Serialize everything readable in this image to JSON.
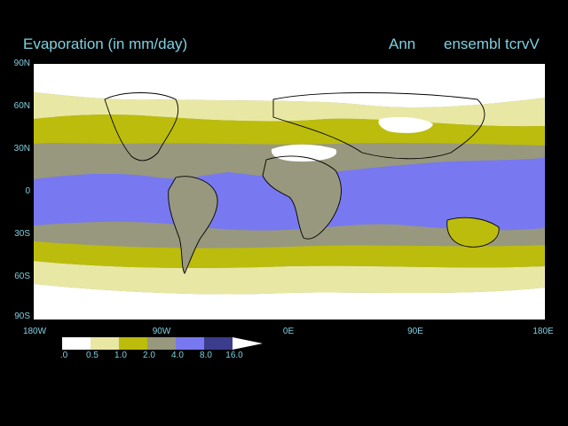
{
  "title": "Evaporation (in mm/day)",
  "season": "Ann",
  "run": "ensembl tcrvV",
  "lat_labels": [
    "90N",
    "60N",
    "30N",
    "0",
    "30S",
    "60S",
    "90S"
  ],
  "lon_labels": [
    "180W",
    "90W",
    "0E",
    "90E",
    "180E"
  ],
  "legend": {
    "labels": [
      ".0",
      "0.5",
      "1.0",
      "2.0",
      "4.0",
      "8.0",
      "16.0"
    ],
    "colors": [
      "#ffffff",
      "#e8e8a4",
      "#bcbc0c",
      "#98987e",
      "#7878f0",
      "#3c3c8c"
    ]
  },
  "colors": {
    "land_outline": "#000000",
    "text": "#7fd0e0",
    "background": "#000000"
  }
}
